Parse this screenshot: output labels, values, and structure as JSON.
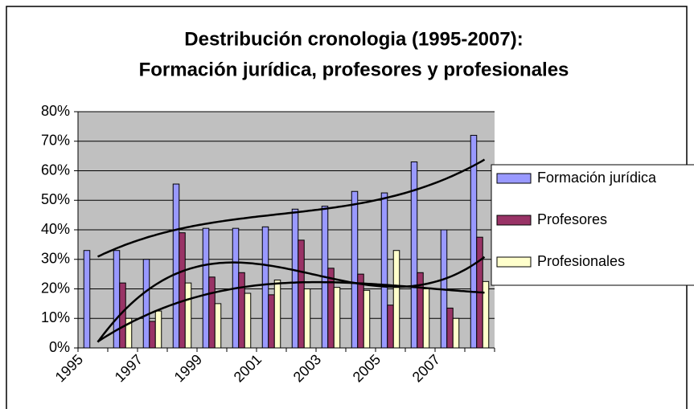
{
  "chart_data": {
    "type": "bar",
    "title": [
      "Destribución cronologia (1995-2007):",
      "Formación jurídica, profesores y profesionales"
    ],
    "categories": [
      "1995",
      null,
      "1997",
      null,
      "1999",
      null,
      "2001",
      null,
      "2003",
      null,
      "2005",
      null,
      "2007",
      null
    ],
    "series": [
      {
        "name": "Formación jurídica",
        "color": "#9999ff",
        "values": [
          33,
          33,
          30,
          55.5,
          40.5,
          40.5,
          41,
          47,
          48,
          53,
          52.5,
          63,
          40,
          72
        ]
      },
      {
        "name": "Profesores",
        "color": "#993366",
        "values": [
          0,
          22,
          9,
          39,
          24,
          25.5,
          18,
          36.5,
          27,
          25,
          14.5,
          25.5,
          13.5,
          37.5
        ]
      },
      {
        "name": "Profesionales",
        "color": "#ffffcc",
        "values": [
          0,
          10,
          12.5,
          22,
          15,
          18.5,
          23,
          20,
          20.5,
          19.5,
          33,
          20,
          10,
          22.5
        ]
      }
    ],
    "ylim": [
      0,
      80
    ],
    "yticks": [
      {
        "value": 0,
        "label": "0%"
      },
      {
        "value": 10,
        "label": "10%"
      },
      {
        "value": 20,
        "label": "20%"
      },
      {
        "value": 30,
        "label": "30%"
      },
      {
        "value": 40,
        "label": "40%"
      },
      {
        "value": 50,
        "label": "50%"
      },
      {
        "value": 60,
        "label": "60%"
      },
      {
        "value": 70,
        "label": "70%"
      },
      {
        "value": 80,
        "label": "80%"
      }
    ],
    "grid": true,
    "trendline": "polynomial",
    "legend": "right"
  }
}
